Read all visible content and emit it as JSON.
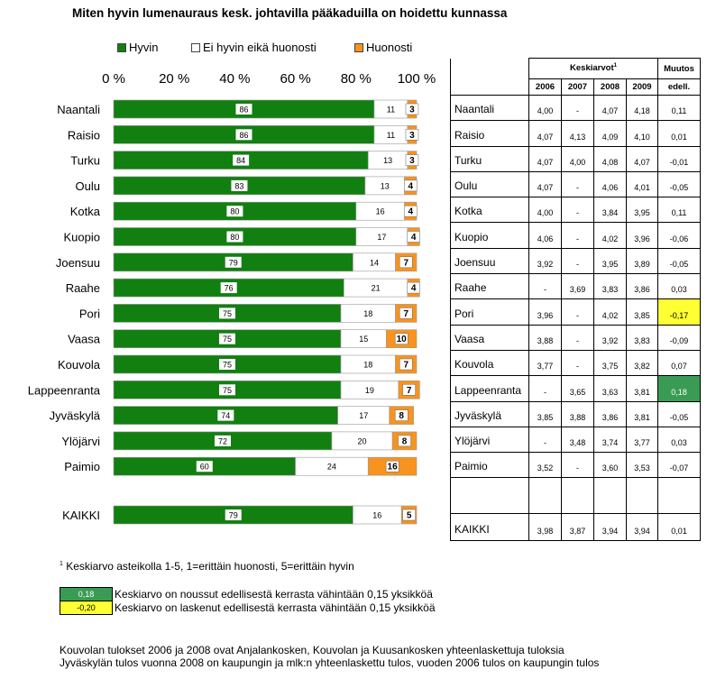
{
  "chart_data": {
    "type": "bar",
    "stacked": true,
    "orientation": "horizontal",
    "title": "Miten hyvin lumenauraus kesk. johtavilla pääkaduilla on hoidettu kunnassa",
    "xlim": [
      0,
      100
    ],
    "x_ticks": [
      "0 %",
      "20 %",
      "40 %",
      "60 %",
      "80 %",
      "100 %"
    ],
    "legend_position": "top",
    "categories": [
      "Naantali",
      "Raisio",
      "Turku",
      "Oulu",
      "Kotka",
      "Kuopio",
      "Joensuu",
      "Raahe",
      "Pori",
      "Vaasa",
      "Kouvola",
      "Lappeenranta",
      "Jyväskylä",
      "Ylöjärvi",
      "Paimio",
      "KAIKKI"
    ],
    "series": [
      {
        "name": "Hyvin",
        "values": [
          86,
          86,
          84,
          83,
          80,
          80,
          79,
          76,
          75,
          75,
          75,
          75,
          74,
          72,
          60,
          79
        ]
      },
      {
        "name": "Ei hyvin eikä huonosti",
        "values": [
          11,
          11,
          13,
          13,
          16,
          17,
          14,
          21,
          18,
          15,
          18,
          19,
          17,
          20,
          24,
          16
        ]
      },
      {
        "name": "Huonosti",
        "values": [
          3,
          3,
          3,
          4,
          4,
          4,
          7,
          4,
          7,
          10,
          7,
          7,
          8,
          8,
          16,
          5
        ]
      }
    ]
  },
  "colors": {
    "hyvin": "#118010",
    "neutral": "#ffffff",
    "huonosti": "#f7931e",
    "positive_highlight": "#3a9c54",
    "negative_highlight": "#ffff33"
  },
  "table": {
    "header_main": "Keskiarvot",
    "header_sup": "1",
    "header_change": "Muutos",
    "header_change_sub": "edell.",
    "years": [
      "2006",
      "2007",
      "2008",
      "2009"
    ],
    "rows": [
      {
        "city": "Naantali",
        "values": [
          "4,00",
          "-",
          "4,07",
          "4,18"
        ],
        "change": "0,11",
        "highlight": ""
      },
      {
        "city": "Raisio",
        "values": [
          "4,07",
          "4,13",
          "4,09",
          "4,10"
        ],
        "change": "0,01",
        "highlight": ""
      },
      {
        "city": "Turku",
        "values": [
          "4,07",
          "4,00",
          "4,08",
          "4,07"
        ],
        "change": "-0,01",
        "highlight": ""
      },
      {
        "city": "Oulu",
        "values": [
          "4,07",
          "-",
          "4,06",
          "4,01"
        ],
        "change": "-0,05",
        "highlight": ""
      },
      {
        "city": "Kotka",
        "values": [
          "4,00",
          "-",
          "3,84",
          "3,95"
        ],
        "change": "0,11",
        "highlight": ""
      },
      {
        "city": "Kuopio",
        "values": [
          "4,06",
          "-",
          "4,02",
          "3,96"
        ],
        "change": "-0,06",
        "highlight": ""
      },
      {
        "city": "Joensuu",
        "values": [
          "3,92",
          "-",
          "3,95",
          "3,89"
        ],
        "change": "-0,05",
        "highlight": ""
      },
      {
        "city": "Raahe",
        "values": [
          "-",
          "3,69",
          "3,83",
          "3,86"
        ],
        "change": "0,03",
        "highlight": ""
      },
      {
        "city": "Pori",
        "values": [
          "3,96",
          "-",
          "4,02",
          "3,85"
        ],
        "change": "-0,17",
        "highlight": "neg"
      },
      {
        "city": "Vaasa",
        "values": [
          "3,88",
          "-",
          "3,92",
          "3,83"
        ],
        "change": "-0,09",
        "highlight": ""
      },
      {
        "city": "Kouvola",
        "values": [
          "3,77",
          "-",
          "3,75",
          "3,82"
        ],
        "change": "0,07",
        "highlight": ""
      },
      {
        "city": "Lappeenranta",
        "values": [
          "-",
          "3,65",
          "3,63",
          "3,81"
        ],
        "change": "0,18",
        "highlight": "pos"
      },
      {
        "city": "Jyväskylä",
        "values": [
          "3,85",
          "3,88",
          "3,86",
          "3,81"
        ],
        "change": "-0,05",
        "highlight": ""
      },
      {
        "city": "Ylöjärvi",
        "values": [
          "-",
          "3,48",
          "3,74",
          "3,77"
        ],
        "change": "0,03",
        "highlight": ""
      },
      {
        "city": "Paimio",
        "values": [
          "3,52",
          "-",
          "3,60",
          "3,53"
        ],
        "change": "-0,07",
        "highlight": ""
      }
    ],
    "total": {
      "city": "KAIKKI",
      "values": [
        "3,98",
        "3,87",
        "3,94",
        "3,94"
      ],
      "change": "0,01"
    }
  },
  "footnote": {
    "sup": "1",
    "text": " Keskiarvo asteikolla 1-5, 1=erittäin huonosti, 5=erittäin hyvin"
  },
  "box_legend": [
    {
      "value": "0,18",
      "text": "Keskiarvo on noussut edellisestä kerrasta vähintään 0,15 yksikköä",
      "kind": "pos"
    },
    {
      "value": "-0,20",
      "text": "Keskiarvo on laskenut edellisestä kerrasta vähintään 0,15 yksikköä",
      "kind": "neg"
    }
  ],
  "notes": [
    "Kouvolan tulokset 2006 ja 2008 ovat Anjalankosken, Kouvolan ja Kuusankosken yhteenlaskettuja tuloksia",
    "Jyväskylän tulos vuonna 2008 on kaupungin ja mlk:n yhteenlaskettu  tulos, vuoden 2006 tulos on  kaupungin tulos"
  ]
}
